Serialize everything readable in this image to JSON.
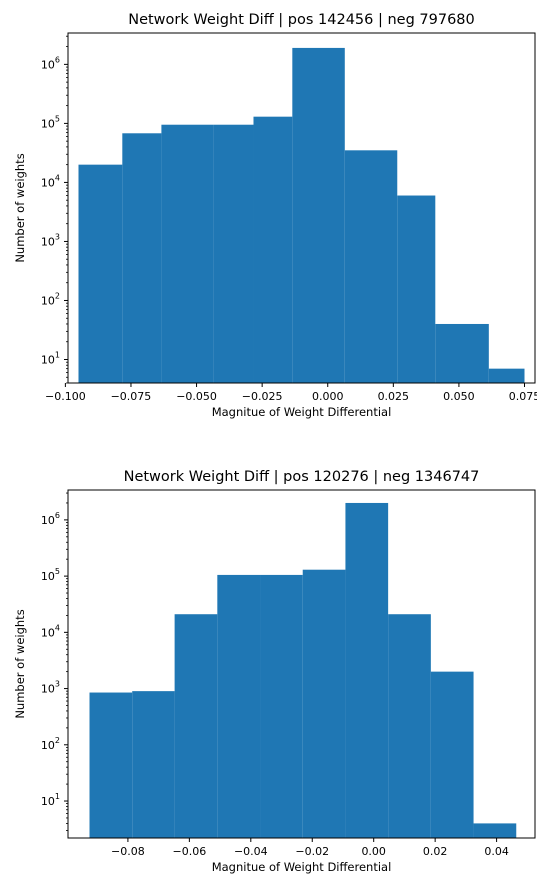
{
  "colors": {
    "bar": "#1f77b4"
  },
  "chart_data": [
    {
      "type": "bar",
      "title": "Network Weight Diff | pos 142456 | neg 797680",
      "xlabel": "Magnitue of Weight Differential",
      "ylabel": "Number of weights",
      "yscale": "log",
      "xlim": [
        -0.099,
        0.079
      ],
      "ylim": [
        4,
        3400000
      ],
      "bin_edges": [
        -0.095,
        -0.0783,
        -0.0634,
        -0.0535,
        -0.0435,
        -0.0283,
        -0.0135,
        -0.0035,
        0.0065,
        0.0215,
        0.041,
        0.0514,
        0.0614,
        0.075
      ],
      "bin_edges_note_hidden": true,
      "bins": [
        {
          "x0": -0.095,
          "x1": -0.0783,
          "count": 20000
        },
        {
          "x0": -0.0783,
          "x1": -0.0634,
          "count": 68000
        },
        {
          "x0": -0.0634,
          "x1": -0.0435,
          "count": 95000
        },
        {
          "x0": -0.0435,
          "x1": -0.0283,
          "count": 95000
        },
        {
          "x0": -0.0283,
          "x1": -0.0135,
          "count": 130000
        },
        {
          "x0": -0.0135,
          "x1": 0.0065,
          "count": 1900000
        },
        {
          "x0": 0.0065,
          "x1": 0.0265,
          "count": 35000
        },
        {
          "x0": 0.0265,
          "x1": 0.041,
          "count": 6000
        },
        {
          "x0": 0.041,
          "x1": 0.0614,
          "count": 40
        },
        {
          "x0": 0.0614,
          "x1": 0.075,
          "count": 7
        }
      ],
      "xticks": [
        -0.1,
        -0.075,
        -0.05,
        -0.025,
        0.0,
        0.025,
        0.05,
        0.075
      ],
      "xtick_labels": [
        "−0.100",
        "−0.075",
        "−0.050",
        "−0.025",
        "0.000",
        "0.025",
        "0.050",
        "0.075"
      ],
      "yticks": [
        10,
        100,
        1000,
        10000,
        100000,
        1000000
      ],
      "ytick_base": "10",
      "ytick_exponents": [
        "1",
        "2",
        "3",
        "4",
        "5",
        "6"
      ]
    },
    {
      "type": "bar",
      "title": "Network Weight Diff | pos 120276 | neg 1346747",
      "xlabel": "Magnitue of Weight Differential",
      "ylabel": "Number of weights",
      "yscale": "log",
      "xlim": [
        -0.0995,
        0.0525
      ],
      "ylim": [
        2.2,
        3400000
      ],
      "bins": [
        {
          "x0": -0.0925,
          "x1": -0.0786,
          "count": 850
        },
        {
          "x0": -0.0786,
          "x1": -0.0648,
          "count": 900
        },
        {
          "x0": -0.0648,
          "x1": -0.0509,
          "count": 21000
        },
        {
          "x0": -0.0509,
          "x1": -0.037,
          "count": 105000
        },
        {
          "x0": -0.037,
          "x1": -0.0231,
          "count": 105000
        },
        {
          "x0": -0.0231,
          "x1": -0.0092,
          "count": 130000
        },
        {
          "x0": -0.0092,
          "x1": 0.0047,
          "count": 2000000
        },
        {
          "x0": 0.0047,
          "x1": 0.0186,
          "count": 21000
        },
        {
          "x0": 0.0186,
          "x1": 0.0325,
          "count": 2000
        },
        {
          "x0": 0.0325,
          "x1": 0.0464,
          "count": 4
        }
      ],
      "xticks": [
        -0.08,
        -0.06,
        -0.04,
        -0.02,
        0.0,
        0.02,
        0.04
      ],
      "xtick_labels": [
        "−0.08",
        "−0.06",
        "−0.04",
        "−0.02",
        "0.00",
        "0.02",
        "0.04"
      ],
      "yticks": [
        10,
        100,
        1000,
        10000,
        100000,
        1000000
      ],
      "ytick_base": "10",
      "ytick_exponents": [
        "1",
        "2",
        "3",
        "4",
        "5",
        "6"
      ]
    }
  ]
}
